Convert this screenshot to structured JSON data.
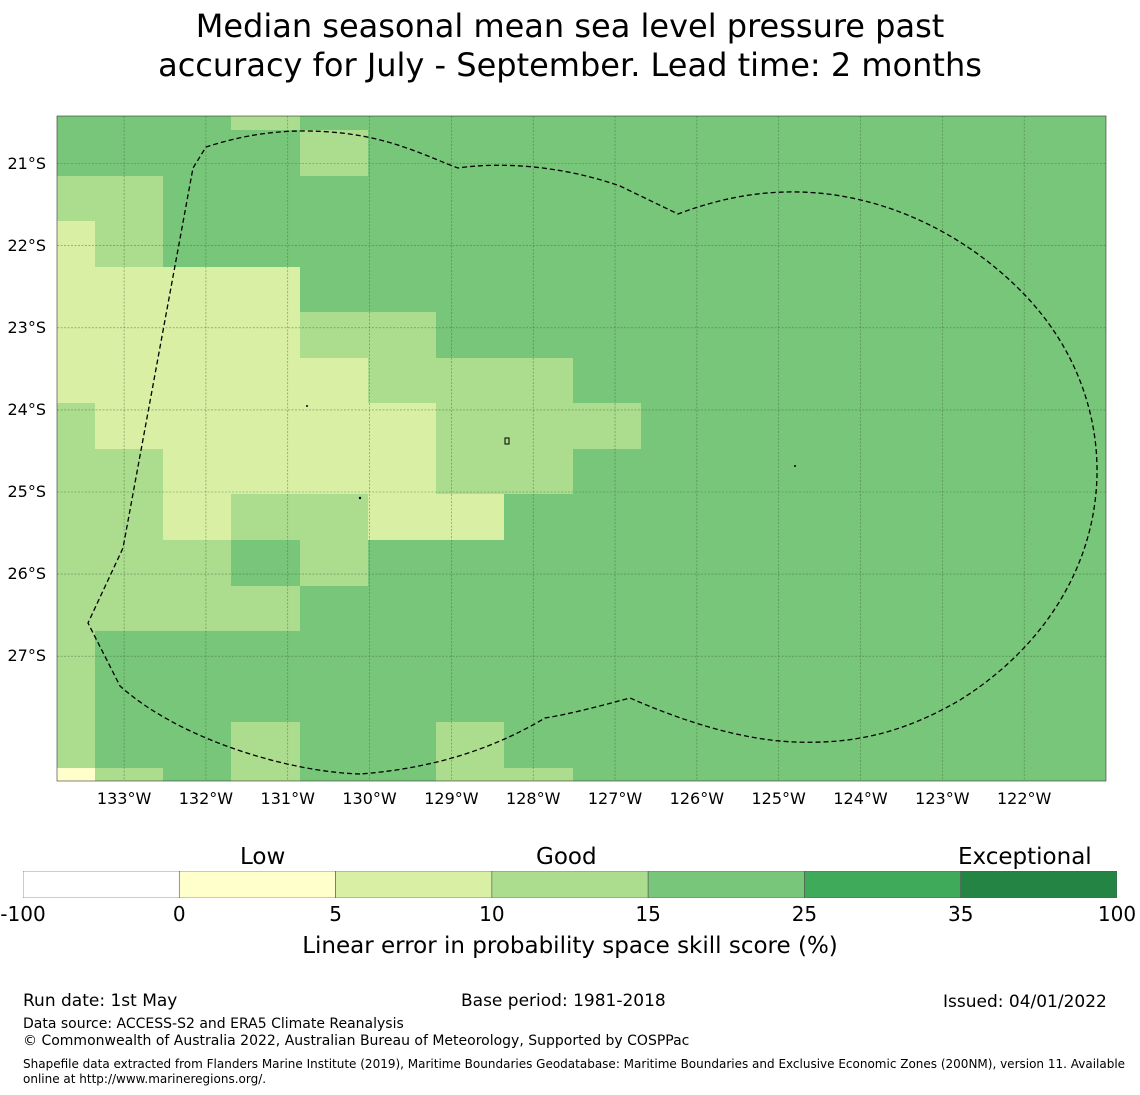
{
  "title": {
    "line1": "Median seasonal mean sea level pressure past",
    "line2": "accuracy for July - September. Lead time: 2 months"
  },
  "map": {
    "lat_labels": [
      "21°S",
      "22°S",
      "23°S",
      "24°S",
      "25°S",
      "26°S",
      "27°S"
    ],
    "lon_labels": [
      "133°W",
      "132°W",
      "131°W",
      "130°W",
      "129°W",
      "128°W",
      "127°W",
      "126°W",
      "125°W",
      "124°W",
      "123°W",
      "122°W"
    ],
    "lat_values": [
      -21,
      -22,
      -23,
      -24,
      -25,
      -26,
      -27
    ],
    "lon_values": [
      -133,
      -132,
      -131,
      -130,
      -129,
      -128,
      -127,
      -126,
      -125,
      -124,
      -123,
      -122
    ],
    "extent": {
      "lon_min": -133.82,
      "lon_max": -121.0,
      "lat_min": -28.52,
      "lat_max": -20.42
    },
    "grid_colors": {
      "good_light": "#acdc8e",
      "low_light": "#d9efa3",
      "good_mid": "#78c679",
      "low_pale": "#ffffcc"
    },
    "eez_boundary": "dashed outline"
  },
  "colorbar": {
    "categories": [
      "Low",
      "Good",
      "Exceptional"
    ],
    "ticks": [
      "-100",
      "0",
      "5",
      "10",
      "15",
      "25",
      "35",
      "100"
    ],
    "colors": [
      "#ffffff",
      "#ffffcc",
      "#d9efa3",
      "#acdc8e",
      "#78c679",
      "#3faa5a",
      "#238443"
    ],
    "label": "Linear error in probability space skill score (%)"
  },
  "footer": {
    "run_date": "Run date: 1st May",
    "base_period": "Base period: 1981-2018",
    "issued": "Issued: 04/01/2022",
    "data_source": "Data source: ACCESS-S2 and ERA5 Climate Reanalysis",
    "copyright": "© Commonwealth of Australia 2022, Australian Bureau of Meteorology, Supported by COSPPac",
    "shapefile": "Shapefile data extracted from Flanders Marine Institute (2019), Maritime Boundaries Geodatabase: Maritime Boundaries and Exclusive Economic Zones (200NM), version 11. Available online at http://www.marineregions.org/."
  }
}
